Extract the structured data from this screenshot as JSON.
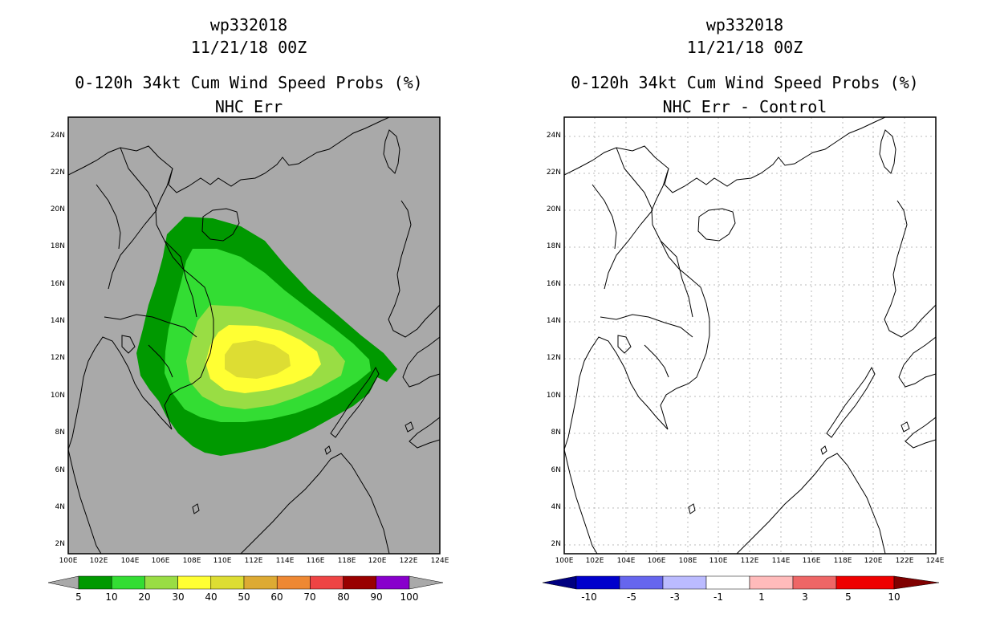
{
  "left_panel": {
    "storm_id": "wp332018",
    "datetime": "11/21/18 00Z",
    "product": "0-120h 34kt Cum Wind Speed Probs (%)",
    "subtitle": "NHC Err",
    "colorbar": {
      "labels": [
        "5",
        "10",
        "20",
        "30",
        "40",
        "50",
        "60",
        "70",
        "80",
        "90",
        "100"
      ],
      "colors": [
        "#009900",
        "#33dd33",
        "#99dd44",
        "#ffff33",
        "#dddd33",
        "#ddaa33",
        "#ee8833",
        "#ee4444",
        "#990000",
        "#8800cc"
      ],
      "under_color": "#a9a9a9",
      "over_color": "#a9a9a9"
    },
    "background_color": "#a9a9a9"
  },
  "right_panel": {
    "storm_id": "wp332018",
    "datetime": "11/21/18 00Z",
    "product": "0-120h 34kt Cum Wind Speed Probs (%)",
    "subtitle": "NHC Err - Control",
    "colorbar": {
      "labels": [
        "-10",
        "-5",
        "-3",
        "-1",
        "1",
        "3",
        "5",
        "10"
      ],
      "colors": [
        "#0000cc",
        "#6666ee",
        "#bbbbff",
        "#ffffff",
        "#ffbbbb",
        "#ee6666",
        "#ee0000"
      ],
      "under_color": "#000080",
      "over_color": "#800000"
    },
    "background_color": "#ffffff"
  },
  "axes": {
    "lat_labels": [
      "24N",
      "22N",
      "20N",
      "18N",
      "16N",
      "14N",
      "12N",
      "10N",
      "8N",
      "6N",
      "4N",
      "2N"
    ],
    "lon_labels": [
      "100E",
      "102E",
      "104E",
      "106E",
      "108E",
      "110E",
      "112E",
      "114E",
      "116E",
      "118E",
      "120E",
      "122E",
      "124E"
    ]
  }
}
